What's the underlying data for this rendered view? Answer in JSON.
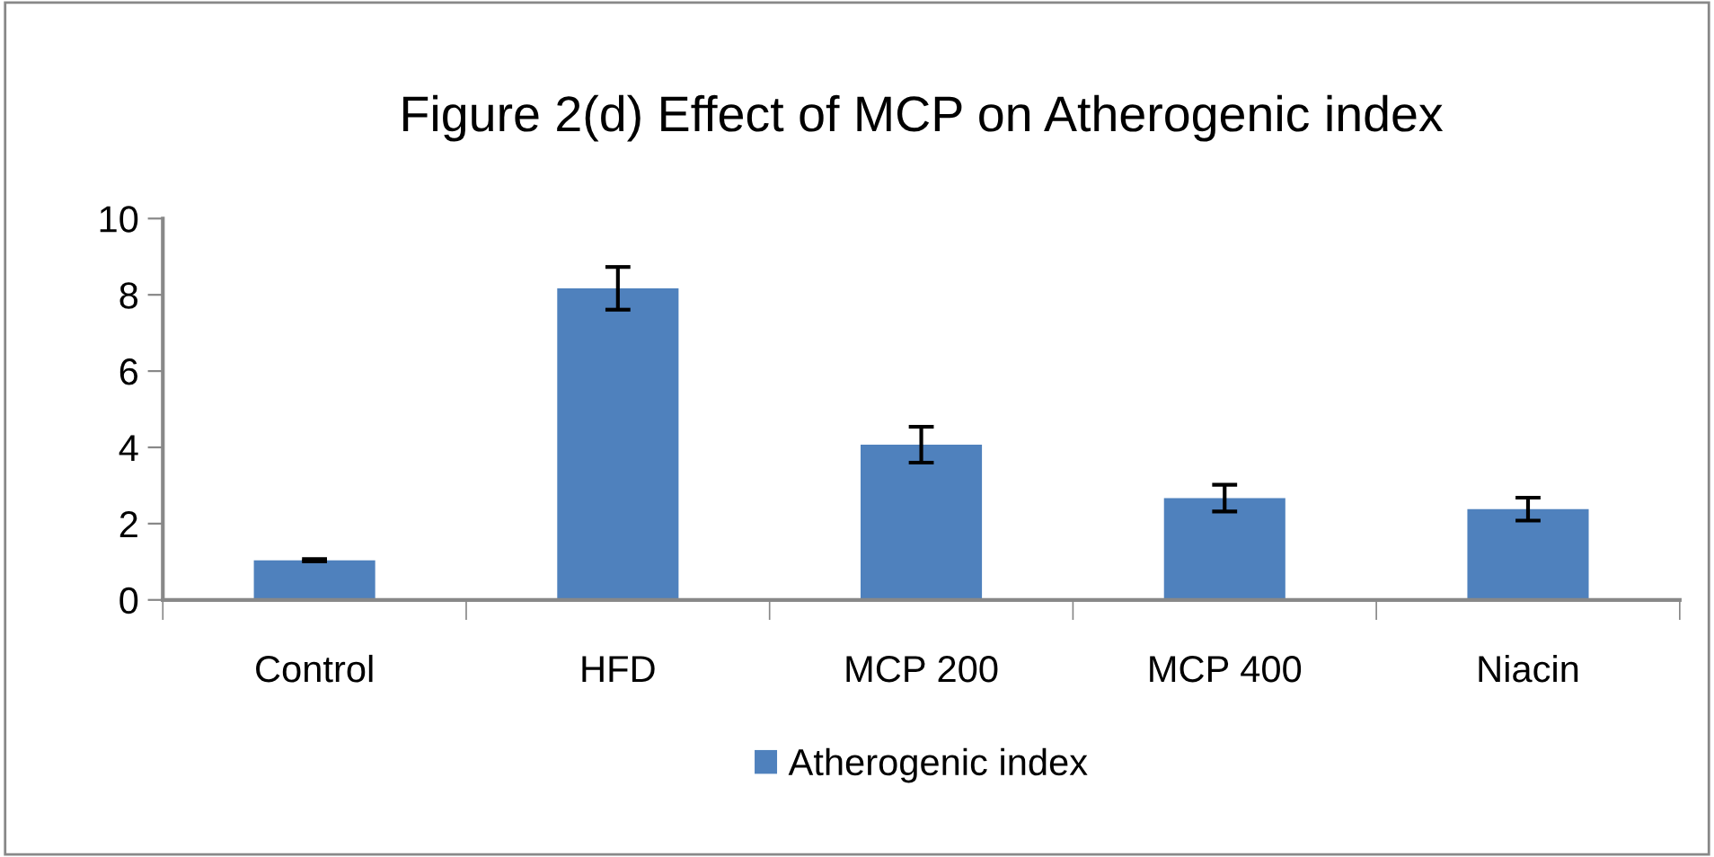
{
  "chart_data": {
    "type": "bar",
    "title": "Figure 2(d) Effect of MCP on Atherogenic index",
    "categories": [
      "Control",
      "HFD",
      "MCP 200",
      "MCP 400",
      "Niacin"
    ],
    "series": [
      {
        "name": "Atherogenic index",
        "color": "#4f81bd",
        "values": [
          1.04,
          8.17,
          4.07,
          2.67,
          2.38
        ],
        "errors": [
          0.03,
          0.56,
          0.47,
          0.35,
          0.3
        ]
      }
    ],
    "ylim": [
      0,
      10
    ],
    "yticks": [
      0,
      2,
      4,
      6,
      8,
      10
    ],
    "grid": false,
    "legend": "bottom"
  }
}
